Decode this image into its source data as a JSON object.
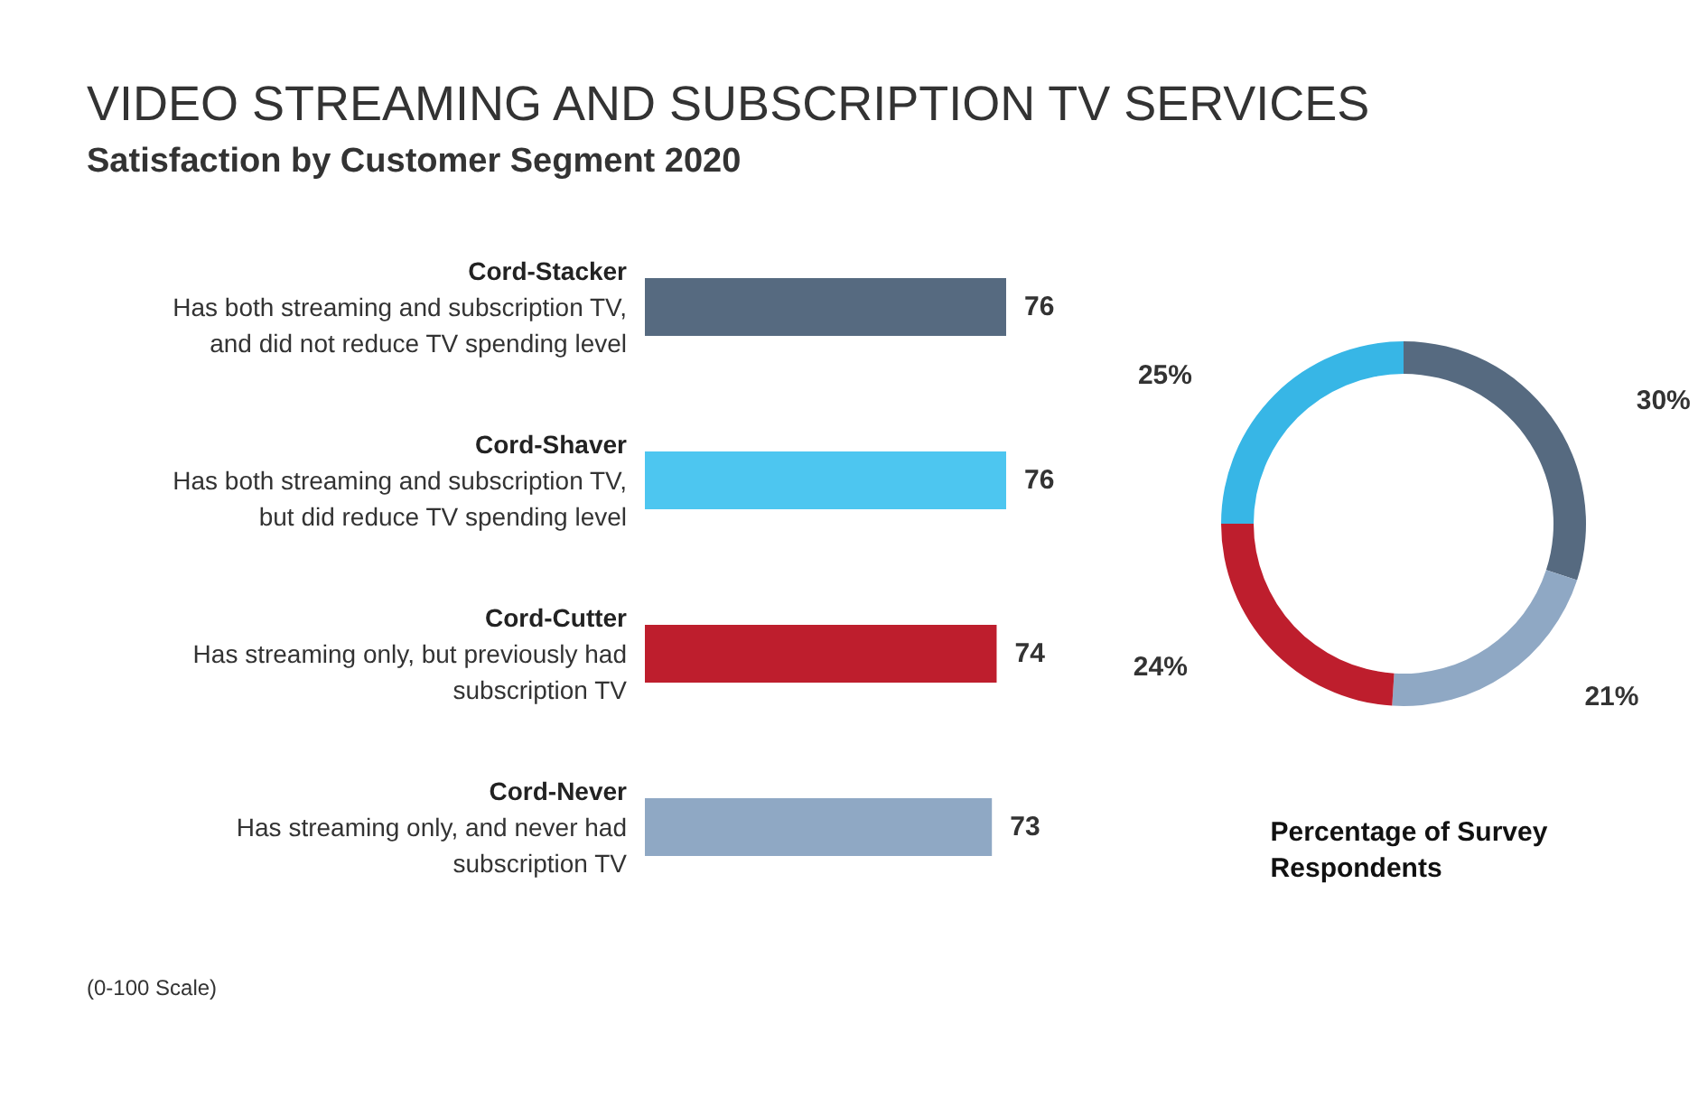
{
  "chart_data": [
    {
      "type": "bar",
      "orientation": "horizontal",
      "title": "VIDEO STREAMING AND SUBSCRIPTION TV SERVICES",
      "subtitle": "Satisfaction by Customer Segment 2020",
      "categories": [
        "Cord-Stacker\nHas both streaming and subscription TV,\nand did not reduce TV spending level",
        "Cord-Shaver\nHas both streaming and subscription TV,\nbut did reduce TV spending level",
        "Cord-Cutter\nHas streaming only, but previously had\nsubscription TV",
        "Cord-Never\nHas streaming only, and never had\nsubscription TV"
      ],
      "values": [
        76,
        76,
        74,
        73
      ],
      "colors": [
        "#566a80",
        "#4dc6f0",
        "#be1e2d",
        "#8fa8c4"
      ],
      "data_labels": true,
      "annotations": [
        "(0-100 Scale)"
      ]
    },
    {
      "type": "donut",
      "xlabel": "Percentage of Survey\nRespondents",
      "categories": [
        null,
        null,
        null,
        null
      ],
      "values": [
        30,
        21,
        24,
        25
      ],
      "colors": [
        "#566a80",
        "#8fa8c4",
        "#be1e2d",
        "#37b6e6"
      ],
      "value_labels": [
        "30%",
        "21%",
        "24%",
        "25%"
      ]
    }
  ]
}
